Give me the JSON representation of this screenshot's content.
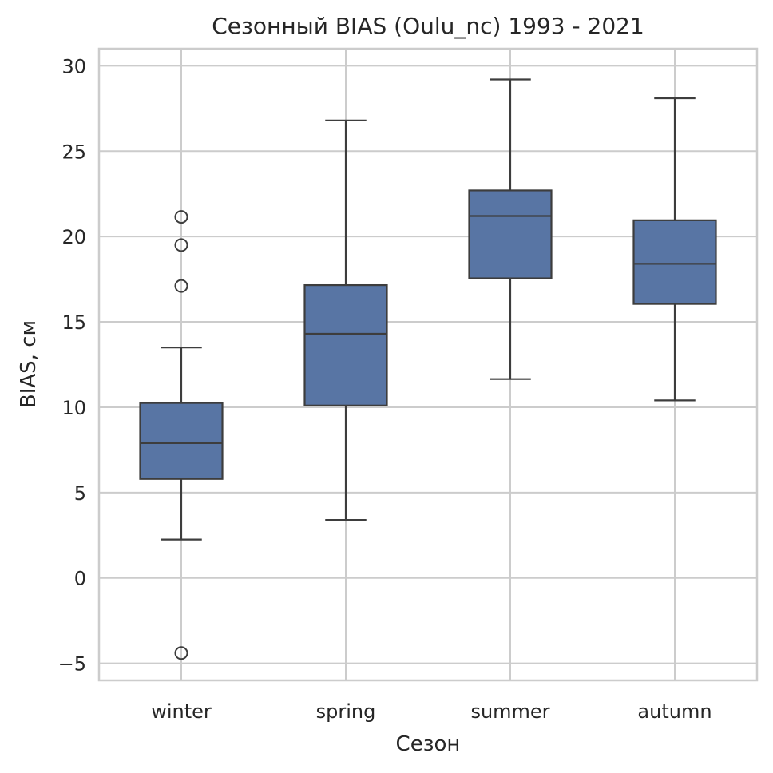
{
  "chart_data": {
    "type": "box",
    "title": "Сезонный BIAS (Oulu_nc) 1993 - 2021",
    "xlabel": "Сезон",
    "ylabel": "BIAS, см",
    "ylim": [
      -6,
      31
    ],
    "yticks": [
      -5,
      0,
      5,
      10,
      15,
      20,
      25,
      30
    ],
    "ytick_labels": [
      "−5",
      "0",
      "5",
      "10",
      "15",
      "20",
      "25",
      "30"
    ],
    "categories": [
      "winter",
      "spring",
      "summer",
      "autumn"
    ],
    "grid": true,
    "colors": {
      "box_fill": "#5875a4",
      "box_edge": "#3d3d3d",
      "grid": "#cccccc",
      "frame": "#cccccc",
      "text": "#262626"
    },
    "series": [
      {
        "category": "winter",
        "whisker_low": 2.25,
        "q1": 5.8,
        "median": 7.9,
        "q3": 10.25,
        "whisker_high": 13.5,
        "outliers": [
          21.15,
          19.5,
          17.1,
          -4.4
        ]
      },
      {
        "category": "spring",
        "whisker_low": 3.4,
        "q1": 10.1,
        "median": 14.3,
        "q3": 17.15,
        "whisker_high": 26.8,
        "outliers": []
      },
      {
        "category": "summer",
        "whisker_low": 11.65,
        "q1": 17.55,
        "median": 21.2,
        "q3": 22.7,
        "whisker_high": 29.2,
        "outliers": []
      },
      {
        "category": "autumn",
        "whisker_low": 10.4,
        "q1": 16.05,
        "median": 18.4,
        "q3": 20.95,
        "whisker_high": 28.1,
        "outliers": []
      }
    ]
  }
}
